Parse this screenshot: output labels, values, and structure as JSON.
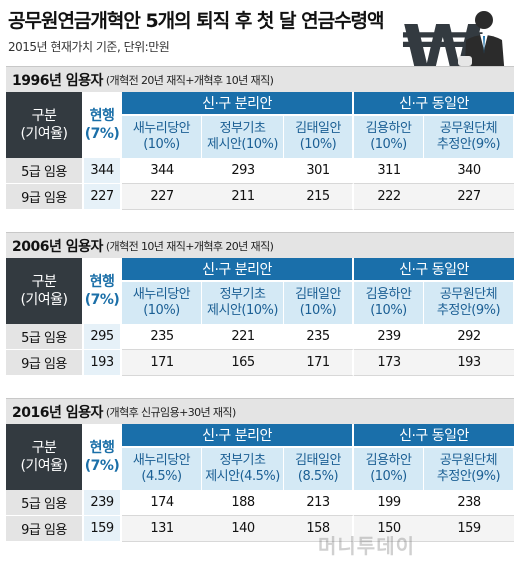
{
  "header": {
    "title": "공무원연금개혁안 5개의 퇴직 후 첫 달 연금수령액",
    "subtitle": "2015년 현재가치 기준, 단위:만원"
  },
  "illustration": {
    "icon": "won-sign-icon",
    "figure": "businessman-icon",
    "won_glyph": "₩"
  },
  "table_headers": {
    "gubun": "구분",
    "gubun_sub": "(기여율)",
    "current": "현행",
    "current_sub": "(7%)",
    "group_split": "신·구 분리안",
    "group_same": "신·구 동일안"
  },
  "sections": [
    {
      "title": "1996년 임용자",
      "note": "(개혁전 20년 재직+개혁후 10년 재직)",
      "plans": [
        {
          "l1": "새누리당안",
          "l2": "(10%)"
        },
        {
          "l1": "정부기초",
          "l2": "제시안(10%)"
        },
        {
          "l1": "김태일안",
          "l2": "(10%)"
        },
        {
          "l1": "김용하안",
          "l2": "(10%)"
        },
        {
          "l1": "공무원단체",
          "l2": "추정안(9%)"
        }
      ],
      "rows": [
        {
          "label": "5급 임용",
          "values": [
            "344",
            "344",
            "293",
            "301",
            "311",
            "340"
          ]
        },
        {
          "label": "9급 임용",
          "values": [
            "227",
            "227",
            "211",
            "215",
            "222",
            "227"
          ]
        }
      ]
    },
    {
      "title": "2006년 임용자",
      "note": "(개혁전 10년 재직+개혁후 20년 재직)",
      "plans": [
        {
          "l1": "새누리당안",
          "l2": "(10%)"
        },
        {
          "l1": "정부기초",
          "l2": "제시안(10%)"
        },
        {
          "l1": "김태일안",
          "l2": "(10%)"
        },
        {
          "l1": "김용하안",
          "l2": "(10%)"
        },
        {
          "l1": "공무원단체",
          "l2": "추정안(9%)"
        }
      ],
      "rows": [
        {
          "label": "5급 임용",
          "values": [
            "295",
            "235",
            "221",
            "235",
            "239",
            "292"
          ]
        },
        {
          "label": "9급 임용",
          "values": [
            "193",
            "171",
            "165",
            "171",
            "173",
            "193"
          ]
        }
      ]
    },
    {
      "title": "2016년 임용자",
      "note": "(개혁후 신규임용+30년 재직)",
      "plans": [
        {
          "l1": "새누리당안",
          "l2": "(4.5%)"
        },
        {
          "l1": "정부기초",
          "l2": "제시안(4.5%)"
        },
        {
          "l1": "김태일안",
          "l2": "(8.5%)"
        },
        {
          "l1": "김용하안",
          "l2": "(10%)"
        },
        {
          "l1": "공무원단체",
          "l2": "추정안(9%)"
        }
      ],
      "rows": [
        {
          "label": "5급 임용",
          "values": [
            "239",
            "174",
            "188",
            "213",
            "199",
            "238"
          ]
        },
        {
          "label": "9급 임용",
          "values": [
            "159",
            "131",
            "140",
            "158",
            "150",
            "159"
          ]
        }
      ]
    }
  ],
  "watermark": "머니투데이"
}
